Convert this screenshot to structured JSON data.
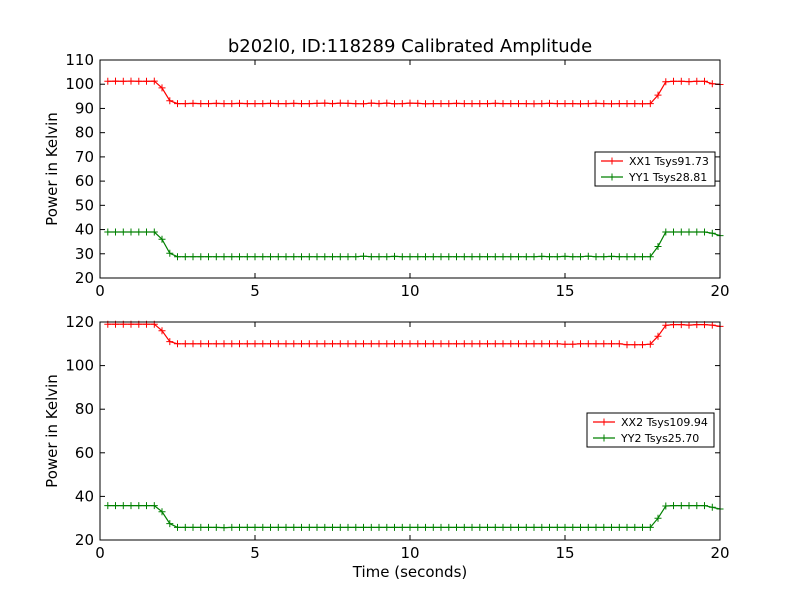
{
  "chart_data": [
    {
      "type": "line",
      "title": "b202l0, ID:118289 Calibrated Amplitude",
      "xlabel": "",
      "ylabel": "Power in Kelvin",
      "xlim": [
        0,
        20
      ],
      "ylim": [
        20,
        110
      ],
      "xticks": [
        0,
        5,
        10,
        15,
        20
      ],
      "yticks": [
        20,
        30,
        40,
        50,
        60,
        70,
        80,
        90,
        100,
        110
      ],
      "grid": false,
      "legend": "center-right",
      "series": [
        {
          "name": "XX1 Tsys91.73",
          "color": "#ff0000",
          "x": [
            0.25,
            0.5,
            0.75,
            1.0,
            1.25,
            1.5,
            1.75,
            2.0,
            2.25,
            2.5,
            2.75,
            3.0,
            3.25,
            3.5,
            3.75,
            4.0,
            4.25,
            4.5,
            4.75,
            5.0,
            5.25,
            5.5,
            5.75,
            6.0,
            6.25,
            6.5,
            6.75,
            7.0,
            7.25,
            7.5,
            7.75,
            8.0,
            8.25,
            8.5,
            8.75,
            9.0,
            9.25,
            9.5,
            9.75,
            10.0,
            10.25,
            10.5,
            10.75,
            11.0,
            11.25,
            11.5,
            11.75,
            12.0,
            12.25,
            12.5,
            12.75,
            13.0,
            13.25,
            13.5,
            13.75,
            14.0,
            14.25,
            14.5,
            14.75,
            15.0,
            15.25,
            15.5,
            15.75,
            16.0,
            16.25,
            16.5,
            16.75,
            17.0,
            17.25,
            17.5,
            17.75,
            18.0,
            18.25,
            18.5,
            18.75,
            19.0,
            19.25,
            19.5,
            19.75,
            20.0
          ],
          "y": [
            101.2,
            101.3,
            101.2,
            101.3,
            101.2,
            101.2,
            101.3,
            98.5,
            93.2,
            92.0,
            92.0,
            92.1,
            92.0,
            92.0,
            92.1,
            92.0,
            92.0,
            92.1,
            92.0,
            92.0,
            92.0,
            92.1,
            92.0,
            92.0,
            92.1,
            92.0,
            92.0,
            92.1,
            92.2,
            92.0,
            92.2,
            92.1,
            92.0,
            91.9,
            92.2,
            92.0,
            92.2,
            91.9,
            92.0,
            92.2,
            92.1,
            91.9,
            92.0,
            92.0,
            92.0,
            92.1,
            92.0,
            92.0,
            92.0,
            92.0,
            92.1,
            92.0,
            92.0,
            92.0,
            92.0,
            91.9,
            92.0,
            92.1,
            92.0,
            92.0,
            92.0,
            91.9,
            92.0,
            92.1,
            92.0,
            91.9,
            92.0,
            92.0,
            92.0,
            91.9,
            92.0,
            95.5,
            101.0,
            101.2,
            101.2,
            101.1,
            101.2,
            101.2,
            100.2,
            99.9
          ]
        },
        {
          "name": "YY1 Tsys28.81",
          "color": "#008000",
          "x": [
            0.25,
            0.5,
            0.75,
            1.0,
            1.25,
            1.5,
            1.75,
            2.0,
            2.25,
            2.5,
            2.75,
            3.0,
            3.25,
            3.5,
            3.75,
            4.0,
            4.25,
            4.5,
            4.75,
            5.0,
            5.25,
            5.5,
            5.75,
            6.0,
            6.25,
            6.5,
            6.75,
            7.0,
            7.25,
            7.5,
            7.75,
            8.0,
            8.25,
            8.5,
            8.75,
            9.0,
            9.25,
            9.5,
            9.75,
            10.0,
            10.25,
            10.5,
            10.75,
            11.0,
            11.25,
            11.5,
            11.75,
            12.0,
            12.25,
            12.5,
            12.75,
            13.0,
            13.25,
            13.5,
            13.75,
            14.0,
            14.25,
            14.5,
            14.75,
            15.0,
            15.25,
            15.5,
            15.75,
            16.0,
            16.25,
            16.5,
            16.75,
            17.0,
            17.25,
            17.5,
            17.75,
            18.0,
            18.25,
            18.5,
            18.75,
            19.0,
            19.25,
            19.5,
            19.75,
            20.0
          ],
          "y": [
            39.0,
            39.0,
            39.0,
            39.0,
            39.0,
            39.0,
            39.0,
            36.0,
            30.2,
            28.8,
            28.8,
            28.8,
            28.8,
            28.8,
            28.8,
            28.8,
            28.8,
            28.8,
            28.8,
            28.8,
            28.8,
            28.8,
            28.8,
            28.8,
            28.8,
            28.8,
            28.8,
            28.8,
            28.8,
            28.8,
            28.8,
            28.8,
            28.8,
            29.0,
            28.8,
            28.8,
            28.8,
            28.9,
            28.8,
            28.8,
            28.8,
            28.8,
            28.8,
            28.8,
            28.8,
            28.8,
            28.8,
            28.8,
            28.8,
            28.8,
            28.8,
            28.8,
            28.8,
            28.8,
            28.8,
            28.8,
            28.9,
            28.8,
            28.8,
            28.9,
            28.8,
            28.8,
            29.0,
            28.8,
            28.8,
            28.9,
            28.8,
            28.8,
            28.8,
            28.8,
            28.8,
            33.0,
            39.0,
            39.0,
            39.0,
            39.0,
            39.0,
            39.0,
            38.5,
            37.5
          ]
        }
      ]
    },
    {
      "type": "line",
      "title": "",
      "xlabel": "Time (seconds)",
      "ylabel": "Power in Kelvin",
      "xlim": [
        0,
        20
      ],
      "ylim": [
        20,
        120
      ],
      "xticks": [
        0,
        5,
        10,
        15,
        20
      ],
      "yticks": [
        20,
        40,
        60,
        80,
        100,
        120
      ],
      "grid": false,
      "legend": "center-right",
      "series": [
        {
          "name": "XX2 Tsys109.94",
          "color": "#ff0000",
          "x": [
            0.25,
            0.5,
            0.75,
            1.0,
            1.25,
            1.5,
            1.75,
            2.0,
            2.25,
            2.5,
            2.75,
            3.0,
            3.25,
            3.5,
            3.75,
            4.0,
            4.25,
            4.5,
            4.75,
            5.0,
            5.25,
            5.5,
            5.75,
            6.0,
            6.25,
            6.5,
            6.75,
            7.0,
            7.25,
            7.5,
            7.75,
            8.0,
            8.25,
            8.5,
            8.75,
            9.0,
            9.25,
            9.5,
            9.75,
            10.0,
            10.25,
            10.5,
            10.75,
            11.0,
            11.25,
            11.5,
            11.75,
            12.0,
            12.25,
            12.5,
            12.75,
            13.0,
            13.25,
            13.5,
            13.75,
            14.0,
            14.25,
            14.5,
            14.75,
            15.0,
            15.25,
            15.5,
            15.75,
            16.0,
            16.25,
            16.5,
            16.75,
            17.0,
            17.25,
            17.5,
            17.75,
            18.0,
            18.25,
            18.5,
            18.75,
            19.0,
            19.25,
            19.5,
            19.75,
            20.0
          ],
          "y": [
            119.0,
            119.0,
            119.0,
            119.0,
            119.0,
            119.0,
            119.0,
            116.0,
            111.0,
            110.0,
            110.0,
            110.0,
            110.0,
            110.0,
            110.0,
            110.0,
            110.0,
            110.0,
            110.0,
            110.0,
            110.0,
            110.0,
            110.0,
            110.0,
            110.0,
            110.0,
            110.0,
            110.0,
            110.0,
            110.0,
            110.0,
            110.0,
            110.0,
            110.0,
            110.0,
            110.0,
            110.0,
            110.0,
            110.0,
            110.0,
            110.0,
            110.0,
            110.0,
            110.0,
            110.0,
            110.0,
            110.0,
            110.0,
            110.0,
            110.0,
            110.0,
            110.0,
            110.0,
            110.0,
            110.0,
            110.0,
            110.0,
            110.0,
            110.0,
            109.8,
            109.8,
            110.0,
            110.0,
            110.0,
            110.0,
            110.0,
            110.0,
            109.6,
            109.6,
            109.6,
            109.8,
            113.5,
            118.5,
            118.8,
            118.8,
            118.6,
            118.8,
            118.8,
            118.6,
            118.0
          ]
        },
        {
          "name": "YY2 Tsys25.70",
          "color": "#008000",
          "x": [
            0.25,
            0.5,
            0.75,
            1.0,
            1.25,
            1.5,
            1.75,
            2.0,
            2.25,
            2.5,
            2.75,
            3.0,
            3.25,
            3.5,
            3.75,
            4.0,
            4.25,
            4.5,
            4.75,
            5.0,
            5.25,
            5.5,
            5.75,
            6.0,
            6.25,
            6.5,
            6.75,
            7.0,
            7.25,
            7.5,
            7.75,
            8.0,
            8.25,
            8.5,
            8.75,
            9.0,
            9.25,
            9.5,
            9.75,
            10.0,
            10.25,
            10.5,
            10.75,
            11.0,
            11.25,
            11.5,
            11.75,
            12.0,
            12.25,
            12.5,
            12.75,
            13.0,
            13.25,
            13.5,
            13.75,
            14.0,
            14.25,
            14.5,
            14.75,
            15.0,
            15.25,
            15.5,
            15.75,
            16.0,
            16.25,
            16.5,
            16.75,
            17.0,
            17.25,
            17.5,
            17.75,
            18.0,
            18.25,
            18.5,
            18.75,
            19.0,
            19.25,
            19.5,
            19.75,
            20.0
          ],
          "y": [
            35.8,
            35.8,
            35.8,
            35.8,
            35.8,
            35.8,
            35.8,
            33.0,
            27.5,
            25.8,
            25.8,
            25.8,
            25.8,
            25.8,
            25.8,
            25.7,
            25.8,
            25.8,
            25.8,
            25.8,
            25.8,
            25.8,
            25.8,
            25.8,
            25.8,
            25.8,
            25.8,
            25.8,
            25.8,
            25.8,
            25.8,
            25.8,
            25.8,
            25.8,
            25.8,
            25.8,
            25.8,
            25.8,
            25.8,
            25.8,
            25.8,
            25.8,
            25.8,
            25.8,
            25.8,
            25.8,
            25.8,
            25.8,
            25.8,
            25.8,
            25.8,
            25.8,
            25.8,
            25.8,
            25.8,
            25.8,
            25.8,
            25.8,
            25.8,
            25.8,
            25.8,
            25.8,
            25.8,
            25.8,
            25.8,
            25.8,
            25.8,
            25.8,
            25.8,
            25.8,
            25.8,
            30.0,
            35.6,
            35.8,
            35.8,
            35.8,
            35.8,
            35.8,
            35.0,
            34.2
          ]
        }
      ]
    }
  ]
}
